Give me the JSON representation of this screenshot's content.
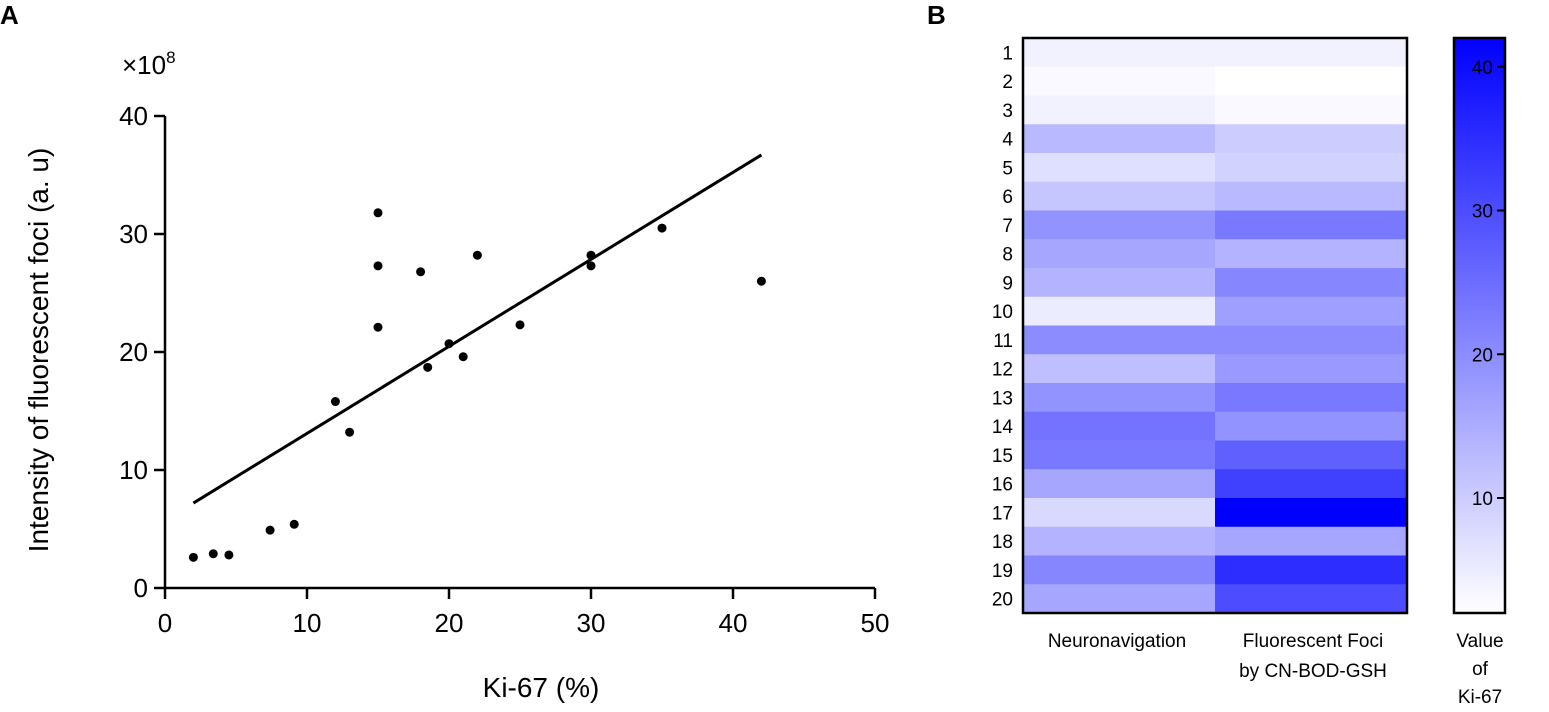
{
  "panels": {
    "a_label": "A",
    "b_label": "B"
  },
  "chart_data": [
    {
      "type": "scatter",
      "title": "",
      "xlabel": "Ki-67 (%)",
      "ylabel": "Intensity of fluorescent foci (a. u)",
      "y_multiplier_label": "×10",
      "y_multiplier_exp": "8",
      "xlim": [
        0,
        50
      ],
      "ylim": [
        0,
        40
      ],
      "x_ticks": [
        0,
        10,
        20,
        30,
        40,
        50
      ],
      "y_ticks": [
        0,
        10,
        20,
        30,
        40
      ],
      "grid": false,
      "points": [
        {
          "x": 2,
          "y": 2.6
        },
        {
          "x": 3.4,
          "y": 2.9
        },
        {
          "x": 4.5,
          "y": 2.8
        },
        {
          "x": 7.4,
          "y": 4.9
        },
        {
          "x": 9.1,
          "y": 5.4
        },
        {
          "x": 12,
          "y": 15.8
        },
        {
          "x": 13,
          "y": 13.2
        },
        {
          "x": 15,
          "y": 31.8
        },
        {
          "x": 15,
          "y": 27.3
        },
        {
          "x": 15,
          "y": 22.1
        },
        {
          "x": 18,
          "y": 26.8
        },
        {
          "x": 18.5,
          "y": 18.7
        },
        {
          "x": 20,
          "y": 20.7
        },
        {
          "x": 21,
          "y": 19.6
        },
        {
          "x": 22,
          "y": 28.2
        },
        {
          "x": 25,
          "y": 22.3
        },
        {
          "x": 30,
          "y": 28.2
        },
        {
          "x": 30,
          "y": 27.3
        },
        {
          "x": 35,
          "y": 30.5
        },
        {
          "x": 42,
          "y": 26
        }
      ],
      "fit_line": {
        "x": [
          2,
          42
        ],
        "y": [
          7.2,
          36.7
        ]
      }
    },
    {
      "type": "heatmap",
      "rows": [
        "1",
        "2",
        "3",
        "4",
        "5",
        "6",
        "7",
        "8",
        "9",
        "10",
        "11",
        "12",
        "13",
        "14",
        "15",
        "16",
        "17",
        "18",
        "19",
        "20"
      ],
      "columns": [
        {
          "line1": "Neuronavigation",
          "line2": ""
        },
        {
          "line1": "Fluorescent Foci",
          "line2": "by CN-BOD-GSH"
        }
      ],
      "values": [
        [
          4,
          4
        ],
        [
          3,
          2
        ],
        [
          4,
          3
        ],
        [
          13,
          10
        ],
        [
          7,
          9
        ],
        [
          11,
          13
        ],
        [
          19,
          23
        ],
        [
          16,
          14
        ],
        [
          14,
          21
        ],
        [
          5,
          17
        ],
        [
          20,
          20
        ],
        [
          12,
          18
        ],
        [
          19,
          23
        ],
        [
          24,
          19
        ],
        [
          23,
          27
        ],
        [
          16,
          32
        ],
        [
          8,
          42
        ],
        [
          14,
          16
        ],
        [
          21,
          35
        ],
        [
          16,
          30
        ]
      ],
      "colorbar": {
        "min": 2,
        "max": 42,
        "ticks": [
          10,
          20,
          30,
          40
        ],
        "label_lines": [
          "Value",
          "of",
          "Ki-67"
        ],
        "color_low": "#ffffff",
        "color_high": "#0000ff"
      }
    }
  ]
}
